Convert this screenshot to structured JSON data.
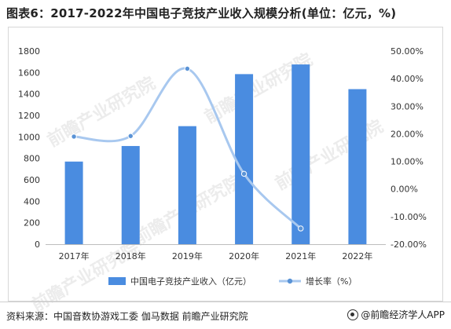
{
  "title": "图表6：2017-2022年中国电子竞技产业收入规模分析(单位：亿元，%)",
  "chart_data": {
    "type": "bar+line",
    "categories": [
      "2017年",
      "2018年",
      "2019年",
      "2020年",
      "2021年",
      "2022年"
    ],
    "series": [
      {
        "name": "中国电子竞技产业收入（亿元）",
        "type": "bar",
        "axis": "left",
        "values": [
          770,
          915,
          1100,
          1585,
          1675,
          1445
        ]
      },
      {
        "name": "增长率（%）",
        "type": "line",
        "axis": "right",
        "smooth": true,
        "values": [
          19.0,
          19.2,
          43.6,
          5.5,
          -14.3,
          null
        ]
      }
    ],
    "y_left": {
      "min": 0,
      "max": 1800,
      "step": 200,
      "ticks": [
        "0",
        "200",
        "400",
        "600",
        "800",
        "1000",
        "1200",
        "1400",
        "1600",
        "1800"
      ]
    },
    "y_right": {
      "min": -20,
      "max": 50,
      "step": 10,
      "ticks": [
        "-20.00%",
        "-10.00%",
        "0.00%",
        "10.00%",
        "20.00%",
        "30.00%",
        "40.00%",
        "50.00%"
      ]
    },
    "grid": false,
    "legend": "bottom",
    "colors": {
      "bar": "#4a8ce0",
      "line": "#a8c8ef",
      "marker": "#5a93d6"
    }
  },
  "watermark": "前瞻产业研究院",
  "footer": {
    "source": "资料来源：中国音数协游戏工委 伽马数据 前瞻产业研究院",
    "brand": "@前瞻经济学人APP"
  }
}
